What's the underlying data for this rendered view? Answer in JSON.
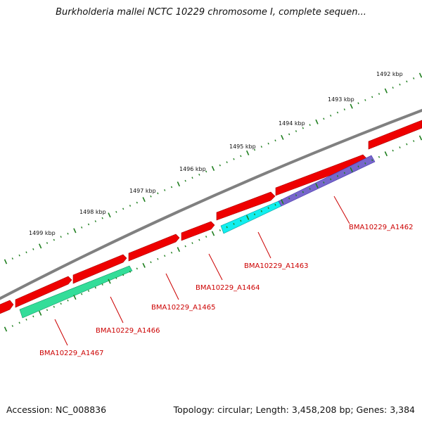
{
  "title": "Burkholderia mallei NCTC 10229 chromosome I, complete sequen...",
  "footer": {
    "accession": "Accession: NC_008836",
    "topology": "Topology: circular; Length: 3,458,208 bp; Genes: 3,384"
  },
  "colors": {
    "backbone": "#808080",
    "tick": "#1f7f1f",
    "label": "#cc0000",
    "gene_red": "#ee0000",
    "gene_green": "#33dd99",
    "gene_cyan": "#11eeee",
    "gene_purple": "#7766cc"
  },
  "kbp_labels": [
    "1492 kbp",
    "1493 kbp",
    "1494 kbp",
    "1495 kbp",
    "1496 kbp",
    "1497 kbp",
    "1498 kbp",
    "1499 kbp"
  ],
  "gene_labels": [
    "BMA10229_A1462",
    "BMA10229_A1463",
    "BMA10229_A1464",
    "BMA10229_A1465",
    "BMA10229_A1466",
    "BMA10229_A1467"
  ]
}
